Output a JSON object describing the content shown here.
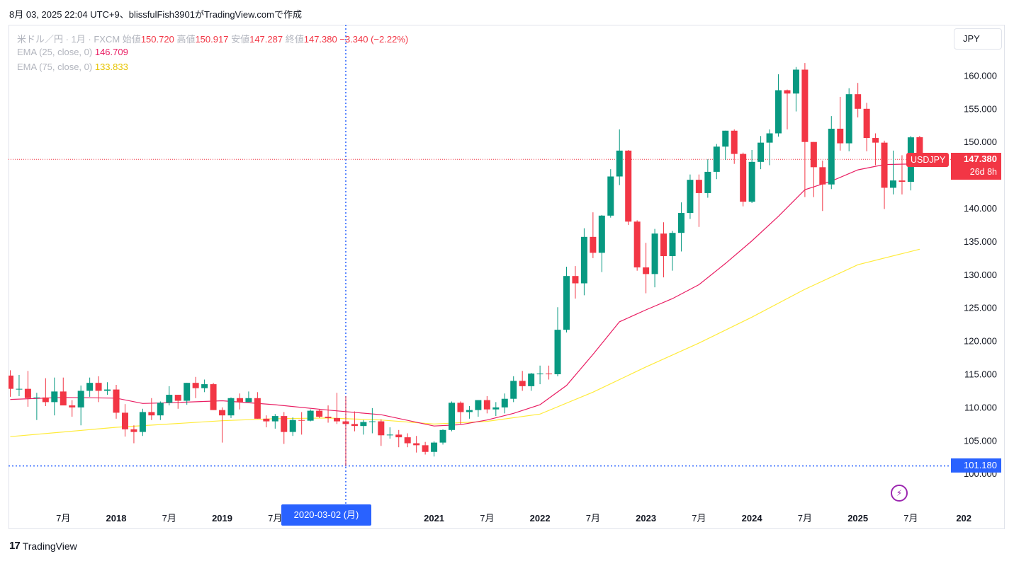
{
  "header": {
    "snapshot_text": "8月 03, 2025 22:04 UTC+9、blissfulFish3901がTradingView.comで作成"
  },
  "legend": {
    "symbol_text": "米ドル／円 · 1月 · FXCM",
    "open_label": "始値",
    "open": "150.720",
    "high_label": "高値",
    "high": "150.917",
    "low_label": "安値",
    "low": "147.287",
    "close_label": "終値",
    "close": "147.380",
    "change": "−3.340 (−2.22%)",
    "ema25_label": "EMA (25, close, 0)",
    "ema25_value": "146.709",
    "ema75_label": "EMA (75, close, 0)",
    "ema75_value": "133.833"
  },
  "currency_button": "JPY",
  "symbol_tag": "USDJPY",
  "last_price": "147.380",
  "countdown": "26d 8h",
  "crosshair": {
    "price": "101.180",
    "date": "2020-03-02 (月)"
  },
  "brand": {
    "logo_mark": "17",
    "name": "TradingView"
  },
  "colors": {
    "up": "#089981",
    "down": "#f23645",
    "ema25": "#e91e63",
    "ema75": "#ffeb3b",
    "crosshair": "#2962ff",
    "alert_icon": "#9c27b0"
  },
  "icons": {
    "alert": "lightning-icon"
  },
  "chart_data": {
    "type": "candlestick",
    "symbol": "USDJPY",
    "interval": "1月",
    "y_ticks": [
      "100.000",
      "105.000",
      "110.000",
      "115.000",
      "120.000",
      "125.000",
      "130.000",
      "135.000",
      "140.000",
      "145.000",
      "150.000",
      "155.000",
      "160.000"
    ],
    "x_labels": [
      {
        "date": "2017-07",
        "label": "7月"
      },
      {
        "date": "2018-01",
        "label": "2018"
      },
      {
        "date": "2018-07",
        "label": "7月"
      },
      {
        "date": "2019-01",
        "label": "2019"
      },
      {
        "date": "2019-07",
        "label": "7月"
      },
      {
        "date": "2021-01",
        "label": "2021"
      },
      {
        "date": "2021-07",
        "label": "7月"
      },
      {
        "date": "2022-01",
        "label": "2022"
      },
      {
        "date": "2022-07",
        "label": "7月"
      },
      {
        "date": "2023-01",
        "label": "2023"
      },
      {
        "date": "2023-07",
        "label": "7月"
      },
      {
        "date": "2024-01",
        "label": "2024"
      },
      {
        "date": "2024-07",
        "label": "7月"
      },
      {
        "date": "2025-01",
        "label": "2025"
      },
      {
        "date": "2025-07",
        "label": "7月"
      },
      {
        "date": "2026-01",
        "label": "202"
      }
    ],
    "candles": [
      {
        "d": "2017-01",
        "o": 114.8,
        "h": 115.6,
        "l": 111.6,
        "c": 112.8
      },
      {
        "d": "2017-02",
        "o": 112.8,
        "h": 114.9,
        "l": 111.7,
        "c": 112.8
      },
      {
        "d": "2017-03",
        "o": 112.8,
        "h": 115.5,
        "l": 110.1,
        "c": 111.4
      },
      {
        "d": "2017-04",
        "o": 111.4,
        "h": 112.2,
        "l": 108.1,
        "c": 111.5
      },
      {
        "d": "2017-05",
        "o": 111.5,
        "h": 114.4,
        "l": 110.2,
        "c": 110.8
      },
      {
        "d": "2017-06",
        "o": 110.8,
        "h": 114.5,
        "l": 108.8,
        "c": 112.4
      },
      {
        "d": "2017-07",
        "o": 112.4,
        "h": 114.5,
        "l": 110.6,
        "c": 110.3
      },
      {
        "d": "2017-08",
        "o": 110.3,
        "h": 111.1,
        "l": 108.6,
        "c": 110.0
      },
      {
        "d": "2017-09",
        "o": 110.0,
        "h": 113.3,
        "l": 107.3,
        "c": 112.5
      },
      {
        "d": "2017-10",
        "o": 112.5,
        "h": 114.5,
        "l": 111.6,
        "c": 113.7
      },
      {
        "d": "2017-11",
        "o": 113.7,
        "h": 114.7,
        "l": 110.8,
        "c": 112.5
      },
      {
        "d": "2017-12",
        "o": 112.5,
        "h": 113.8,
        "l": 111.9,
        "c": 112.7
      },
      {
        "d": "2018-01",
        "o": 112.7,
        "h": 113.4,
        "l": 108.3,
        "c": 109.2
      },
      {
        "d": "2018-02",
        "o": 109.2,
        "h": 110.5,
        "l": 105.6,
        "c": 106.7
      },
      {
        "d": "2018-03",
        "o": 106.7,
        "h": 107.3,
        "l": 104.6,
        "c": 106.3
      },
      {
        "d": "2018-04",
        "o": 106.3,
        "h": 109.8,
        "l": 105.7,
        "c": 109.3
      },
      {
        "d": "2018-05",
        "o": 109.3,
        "h": 111.4,
        "l": 108.1,
        "c": 108.8
      },
      {
        "d": "2018-06",
        "o": 108.8,
        "h": 110.9,
        "l": 108.1,
        "c": 110.7
      },
      {
        "d": "2018-07",
        "o": 110.7,
        "h": 113.2,
        "l": 110.3,
        "c": 111.9
      },
      {
        "d": "2018-08",
        "o": 111.9,
        "h": 111.9,
        "l": 109.8,
        "c": 111.0
      },
      {
        "d": "2018-09",
        "o": 111.0,
        "h": 113.7,
        "l": 110.4,
        "c": 113.7
      },
      {
        "d": "2018-10",
        "o": 113.7,
        "h": 114.6,
        "l": 111.4,
        "c": 112.9
      },
      {
        "d": "2018-11",
        "o": 112.9,
        "h": 114.2,
        "l": 112.3,
        "c": 113.5
      },
      {
        "d": "2018-12",
        "o": 113.5,
        "h": 113.7,
        "l": 109.6,
        "c": 109.6
      },
      {
        "d": "2019-01",
        "o": 109.6,
        "h": 110.0,
        "l": 104.7,
        "c": 108.8
      },
      {
        "d": "2019-02",
        "o": 108.8,
        "h": 111.5,
        "l": 108.4,
        "c": 111.4
      },
      {
        "d": "2019-03",
        "o": 111.4,
        "h": 112.1,
        "l": 109.7,
        "c": 110.8
      },
      {
        "d": "2019-04",
        "o": 110.8,
        "h": 112.4,
        "l": 110.8,
        "c": 111.4
      },
      {
        "d": "2019-05",
        "o": 111.4,
        "h": 112.3,
        "l": 108.3,
        "c": 108.3
      },
      {
        "d": "2019-06",
        "o": 108.3,
        "h": 108.8,
        "l": 107.0,
        "c": 107.9
      },
      {
        "d": "2019-07",
        "o": 107.9,
        "h": 109.0,
        "l": 106.8,
        "c": 108.7
      },
      {
        "d": "2019-08",
        "o": 108.7,
        "h": 109.3,
        "l": 104.5,
        "c": 106.3
      },
      {
        "d": "2019-09",
        "o": 106.3,
        "h": 108.5,
        "l": 105.7,
        "c": 108.1
      },
      {
        "d": "2019-10",
        "o": 108.1,
        "h": 109.3,
        "l": 105.9,
        "c": 108.0
      },
      {
        "d": "2019-11",
        "o": 108.0,
        "h": 109.7,
        "l": 107.9,
        "c": 109.5
      },
      {
        "d": "2019-12",
        "o": 109.5,
        "h": 109.7,
        "l": 108.4,
        "c": 108.6
      },
      {
        "d": "2020-01",
        "o": 108.6,
        "h": 110.3,
        "l": 107.7,
        "c": 108.4
      },
      {
        "d": "2020-02",
        "o": 108.4,
        "h": 112.2,
        "l": 107.5,
        "c": 107.9
      },
      {
        "d": "2020-03",
        "o": 107.9,
        "h": 111.7,
        "l": 101.2,
        "c": 107.5
      },
      {
        "d": "2020-04",
        "o": 107.5,
        "h": 109.4,
        "l": 106.4,
        "c": 107.2
      },
      {
        "d": "2020-05",
        "o": 107.2,
        "h": 108.1,
        "l": 105.9,
        "c": 107.8
      },
      {
        "d": "2020-06",
        "o": 107.8,
        "h": 109.9,
        "l": 106.1,
        "c": 107.9
      },
      {
        "d": "2020-07",
        "o": 107.9,
        "h": 108.2,
        "l": 104.2,
        "c": 105.8
      },
      {
        "d": "2020-08",
        "o": 105.8,
        "h": 107.0,
        "l": 105.3,
        "c": 105.9
      },
      {
        "d": "2020-09",
        "o": 105.9,
        "h": 106.6,
        "l": 104.0,
        "c": 105.5
      },
      {
        "d": "2020-10",
        "o": 105.5,
        "h": 106.1,
        "l": 104.0,
        "c": 104.6
      },
      {
        "d": "2020-11",
        "o": 104.6,
        "h": 105.7,
        "l": 103.2,
        "c": 104.3
      },
      {
        "d": "2020-12",
        "o": 104.3,
        "h": 104.8,
        "l": 102.9,
        "c": 103.3
      },
      {
        "d": "2021-01",
        "o": 103.3,
        "h": 104.9,
        "l": 102.6,
        "c": 104.7
      },
      {
        "d": "2021-02",
        "o": 104.7,
        "h": 106.7,
        "l": 104.4,
        "c": 106.6
      },
      {
        "d": "2021-03",
        "o": 106.6,
        "h": 110.9,
        "l": 106.4,
        "c": 110.7
      },
      {
        "d": "2021-04",
        "o": 110.7,
        "h": 110.9,
        "l": 107.5,
        "c": 109.3
      },
      {
        "d": "2021-05",
        "o": 109.3,
        "h": 110.2,
        "l": 108.3,
        "c": 109.6
      },
      {
        "d": "2021-06",
        "o": 109.6,
        "h": 111.1,
        "l": 108.6,
        "c": 111.1
      },
      {
        "d": "2021-07",
        "o": 111.1,
        "h": 111.7,
        "l": 109.1,
        "c": 109.7
      },
      {
        "d": "2021-08",
        "o": 109.7,
        "h": 110.8,
        "l": 108.7,
        "c": 110.0
      },
      {
        "d": "2021-09",
        "o": 110.0,
        "h": 112.1,
        "l": 109.1,
        "c": 111.3
      },
      {
        "d": "2021-10",
        "o": 111.3,
        "h": 114.7,
        "l": 110.8,
        "c": 114.0
      },
      {
        "d": "2021-11",
        "o": 114.0,
        "h": 115.5,
        "l": 112.5,
        "c": 113.2
      },
      {
        "d": "2021-12",
        "o": 113.2,
        "h": 115.2,
        "l": 112.5,
        "c": 115.1
      },
      {
        "d": "2022-01",
        "o": 115.1,
        "h": 116.3,
        "l": 113.5,
        "c": 115.1
      },
      {
        "d": "2022-02",
        "o": 115.1,
        "h": 116.3,
        "l": 114.2,
        "c": 115.0
      },
      {
        "d": "2022-03",
        "o": 115.0,
        "h": 125.1,
        "l": 114.7,
        "c": 121.7
      },
      {
        "d": "2022-04",
        "o": 121.7,
        "h": 131.2,
        "l": 121.3,
        "c": 129.8
      },
      {
        "d": "2022-05",
        "o": 129.8,
        "h": 131.3,
        "l": 126.4,
        "c": 128.7
      },
      {
        "d": "2022-06",
        "o": 128.7,
        "h": 137.0,
        "l": 126.9,
        "c": 135.7
      },
      {
        "d": "2022-07",
        "o": 135.7,
        "h": 139.4,
        "l": 132.5,
        "c": 133.3
      },
      {
        "d": "2022-08",
        "o": 133.3,
        "h": 139.0,
        "l": 130.4,
        "c": 138.9
      },
      {
        "d": "2022-09",
        "o": 138.9,
        "h": 145.9,
        "l": 138.6,
        "c": 144.8
      },
      {
        "d": "2022-10",
        "o": 144.8,
        "h": 151.9,
        "l": 143.5,
        "c": 148.7
      },
      {
        "d": "2022-11",
        "o": 148.7,
        "h": 148.8,
        "l": 137.5,
        "c": 138.0
      },
      {
        "d": "2022-12",
        "o": 138.0,
        "h": 138.2,
        "l": 130.6,
        "c": 131.1
      },
      {
        "d": "2023-01",
        "o": 131.1,
        "h": 134.8,
        "l": 127.2,
        "c": 130.1
      },
      {
        "d": "2023-02",
        "o": 130.1,
        "h": 136.9,
        "l": 128.1,
        "c": 136.2
      },
      {
        "d": "2023-03",
        "o": 136.2,
        "h": 137.9,
        "l": 129.6,
        "c": 132.8
      },
      {
        "d": "2023-04",
        "o": 132.8,
        "h": 136.6,
        "l": 130.6,
        "c": 136.3
      },
      {
        "d": "2023-05",
        "o": 136.3,
        "h": 140.9,
        "l": 133.5,
        "c": 139.3
      },
      {
        "d": "2023-06",
        "o": 139.3,
        "h": 145.1,
        "l": 138.4,
        "c": 144.3
      },
      {
        "d": "2023-07",
        "o": 144.3,
        "h": 145.1,
        "l": 137.2,
        "c": 142.3
      },
      {
        "d": "2023-08",
        "o": 142.3,
        "h": 147.4,
        "l": 141.6,
        "c": 145.5
      },
      {
        "d": "2023-09",
        "o": 145.5,
        "h": 149.7,
        "l": 144.4,
        "c": 149.3
      },
      {
        "d": "2023-10",
        "o": 149.3,
        "h": 151.7,
        "l": 147.3,
        "c": 151.7
      },
      {
        "d": "2023-11",
        "o": 151.7,
        "h": 151.9,
        "l": 146.7,
        "c": 148.2
      },
      {
        "d": "2023-12",
        "o": 148.2,
        "h": 148.4,
        "l": 140.3,
        "c": 141.0
      },
      {
        "d": "2024-01",
        "o": 141.0,
        "h": 148.8,
        "l": 140.8,
        "c": 147.0
      },
      {
        "d": "2024-02",
        "o": 147.0,
        "h": 150.9,
        "l": 145.9,
        "c": 149.9
      },
      {
        "d": "2024-03",
        "o": 149.9,
        "h": 151.9,
        "l": 146.5,
        "c": 151.3
      },
      {
        "d": "2024-04",
        "o": 151.3,
        "h": 160.2,
        "l": 150.8,
        "c": 157.8
      },
      {
        "d": "2024-05",
        "o": 157.8,
        "h": 157.9,
        "l": 151.9,
        "c": 157.3
      },
      {
        "d": "2024-06",
        "o": 157.3,
        "h": 161.3,
        "l": 154.6,
        "c": 160.9
      },
      {
        "d": "2024-07",
        "o": 160.9,
        "h": 161.9,
        "l": 141.7,
        "c": 150.0
      },
      {
        "d": "2024-08",
        "o": 150.0,
        "h": 150.0,
        "l": 141.7,
        "c": 146.2
      },
      {
        "d": "2024-09",
        "o": 146.2,
        "h": 147.2,
        "l": 139.6,
        "c": 143.6
      },
      {
        "d": "2024-10",
        "o": 143.6,
        "h": 153.9,
        "l": 142.9,
        "c": 152.0
      },
      {
        "d": "2024-11",
        "o": 152.0,
        "h": 156.8,
        "l": 148.7,
        "c": 149.8
      },
      {
        "d": "2024-12",
        "o": 149.8,
        "h": 158.1,
        "l": 148.6,
        "c": 157.2
      },
      {
        "d": "2025-01",
        "o": 157.2,
        "h": 158.9,
        "l": 153.7,
        "c": 155.0
      },
      {
        "d": "2025-02",
        "o": 155.0,
        "h": 155.9,
        "l": 148.6,
        "c": 150.6
      },
      {
        "d": "2025-03",
        "o": 150.6,
        "h": 151.3,
        "l": 146.5,
        "c": 149.9
      },
      {
        "d": "2025-04",
        "o": 149.9,
        "h": 150.2,
        "l": 139.9,
        "c": 143.1
      },
      {
        "d": "2025-05",
        "o": 143.1,
        "h": 148.7,
        "l": 142.1,
        "c": 144.2
      },
      {
        "d": "2025-06",
        "o": 144.2,
        "h": 148.0,
        "l": 142.1,
        "c": 144.0
      },
      {
        "d": "2025-07",
        "o": 144.0,
        "h": 150.9,
        "l": 142.7,
        "c": 150.7
      },
      {
        "d": "2025-08",
        "o": 150.72,
        "h": 150.917,
        "l": 147.287,
        "c": 147.38
      }
    ],
    "ema25": [
      {
        "d": "2017-01",
        "v": 111.2
      },
      {
        "d": "2017-07",
        "v": 111.5
      },
      {
        "d": "2018-01",
        "v": 111.4
      },
      {
        "d": "2018-04",
        "v": 110.6
      },
      {
        "d": "2018-07",
        "v": 110.7
      },
      {
        "d": "2019-01",
        "v": 111.0
      },
      {
        "d": "2019-07",
        "v": 110.4
      },
      {
        "d": "2020-01",
        "v": 109.6
      },
      {
        "d": "2020-07",
        "v": 108.9
      },
      {
        "d": "2021-01",
        "v": 107.2
      },
      {
        "d": "2021-04",
        "v": 107.4
      },
      {
        "d": "2021-07",
        "v": 108.1
      },
      {
        "d": "2021-10",
        "v": 109.1
      },
      {
        "d": "2022-01",
        "v": 110.4
      },
      {
        "d": "2022-04",
        "v": 113.3
      },
      {
        "d": "2022-07",
        "v": 118.0
      },
      {
        "d": "2022-10",
        "v": 122.9
      },
      {
        "d": "2023-01",
        "v": 124.7
      },
      {
        "d": "2023-04",
        "v": 126.4
      },
      {
        "d": "2023-07",
        "v": 128.5
      },
      {
        "d": "2023-10",
        "v": 131.7
      },
      {
        "d": "2024-01",
        "v": 135.1
      },
      {
        "d": "2024-04",
        "v": 138.8
      },
      {
        "d": "2024-07",
        "v": 142.8
      },
      {
        "d": "2024-10",
        "v": 144.1
      },
      {
        "d": "2025-01",
        "v": 145.8
      },
      {
        "d": "2025-04",
        "v": 146.6
      },
      {
        "d": "2025-08",
        "v": 146.709
      }
    ],
    "ema75": [
      {
        "d": "2017-01",
        "v": 105.6
      },
      {
        "d": "2017-07",
        "v": 106.3
      },
      {
        "d": "2018-01",
        "v": 107.0
      },
      {
        "d": "2018-07",
        "v": 107.5
      },
      {
        "d": "2019-01",
        "v": 108.0
      },
      {
        "d": "2019-07",
        "v": 108.3
      },
      {
        "d": "2020-01",
        "v": 108.4
      },
      {
        "d": "2020-07",
        "v": 108.1
      },
      {
        "d": "2021-01",
        "v": 107.5
      },
      {
        "d": "2021-07",
        "v": 107.9
      },
      {
        "d": "2022-01",
        "v": 109.0
      },
      {
        "d": "2022-07",
        "v": 112.3
      },
      {
        "d": "2023-01",
        "v": 116.1
      },
      {
        "d": "2023-07",
        "v": 119.7
      },
      {
        "d": "2024-01",
        "v": 123.6
      },
      {
        "d": "2024-07",
        "v": 127.8
      },
      {
        "d": "2025-01",
        "v": 131.5
      },
      {
        "d": "2025-08",
        "v": 133.833
      }
    ],
    "last_price": 147.38,
    "crosshair_price": 101.18,
    "crosshair_date": "2020-03"
  }
}
